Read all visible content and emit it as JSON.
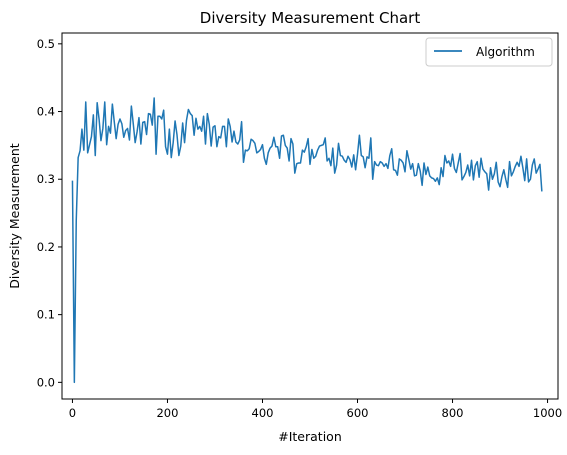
{
  "chart_data": {
    "type": "line",
    "title": "Diversity Measurement Chart",
    "xlabel": "#Iteration",
    "ylabel": "Diversity Measurement",
    "xlim": [
      -22,
      1022
    ],
    "ylim": [
      -0.0246,
      0.516
    ],
    "xticks": [
      0,
      200,
      400,
      600,
      800,
      1000
    ],
    "xtick_labels": [
      "0",
      "200",
      "400",
      "600",
      "800",
      "1000"
    ],
    "yticks": [
      0.0,
      0.1,
      0.2,
      0.3,
      0.4,
      0.5
    ],
    "ytick_labels": [
      "0.0",
      "0.1",
      "0.2",
      "0.3",
      "0.4",
      "0.5"
    ],
    "grid": false,
    "legend_position": "top-right",
    "series": [
      {
        "name": "Algorithm",
        "color": "#1f77b4",
        "approximate": true,
        "x_start": 0,
        "x_step": 4,
        "values": [
          0.298,
          0.0,
          0.239,
          0.332,
          0.342,
          0.374,
          0.343,
          0.414,
          0.339,
          0.351,
          0.363,
          0.395,
          0.335,
          0.413,
          0.389,
          0.357,
          0.375,
          0.414,
          0.351,
          0.378,
          0.368,
          0.411,
          0.385,
          0.36,
          0.381,
          0.389,
          0.382,
          0.362,
          0.372,
          0.375,
          0.358,
          0.408,
          0.382,
          0.354,
          0.37,
          0.391,
          0.352,
          0.384,
          0.385,
          0.366,
          0.397,
          0.396,
          0.38,
          0.42,
          0.337,
          0.393,
          0.393,
          0.389,
          0.402,
          0.348,
          0.337,
          0.374,
          0.332,
          0.354,
          0.386,
          0.366,
          0.335,
          0.349,
          0.383,
          0.354,
          0.387,
          0.403,
          0.397,
          0.394,
          0.365,
          0.39,
          0.374,
          0.378,
          0.371,
          0.393,
          0.352,
          0.397,
          0.381,
          0.349,
          0.377,
          0.379,
          0.348,
          0.363,
          0.361,
          0.378,
          0.378,
          0.348,
          0.389,
          0.378,
          0.355,
          0.371,
          0.355,
          0.352,
          0.358,
          0.385,
          0.325,
          0.343,
          0.342,
          0.345,
          0.359,
          0.357,
          0.353,
          0.339,
          0.341,
          0.344,
          0.351,
          0.331,
          0.322,
          0.339,
          0.346,
          0.349,
          0.362,
          0.348,
          0.348,
          0.331,
          0.364,
          0.365,
          0.35,
          0.346,
          0.327,
          0.36,
          0.352,
          0.309,
          0.323,
          0.324,
          0.324,
          0.343,
          0.34,
          0.348,
          0.36,
          0.322,
          0.344,
          0.331,
          0.334,
          0.343,
          0.349,
          0.35,
          0.351,
          0.361,
          0.327,
          0.331,
          0.32,
          0.346,
          0.309,
          0.321,
          0.353,
          0.335,
          0.334,
          0.328,
          0.325,
          0.334,
          0.329,
          0.318,
          0.336,
          0.314,
          0.337,
          0.365,
          0.335,
          0.333,
          0.317,
          0.333,
          0.331,
          0.361,
          0.3,
          0.326,
          0.321,
          0.32,
          0.326,
          0.324,
          0.319,
          0.323,
          0.316,
          0.335,
          0.345,
          0.314,
          0.313,
          0.306,
          0.33,
          0.328,
          0.324,
          0.311,
          0.342,
          0.329,
          0.315,
          0.323,
          0.305,
          0.306,
          0.323,
          0.312,
          0.291,
          0.324,
          0.307,
          0.318,
          0.305,
          0.302,
          0.301,
          0.297,
          0.302,
          0.292,
          0.317,
          0.304,
          0.335,
          0.324,
          0.327,
          0.319,
          0.337,
          0.316,
          0.31,
          0.324,
          0.338,
          0.299,
          0.304,
          0.31,
          0.321,
          0.305,
          0.328,
          0.299,
          0.32,
          0.326,
          0.303,
          0.331,
          0.315,
          0.311,
          0.308,
          0.284,
          0.317,
          0.3,
          0.308,
          0.325,
          0.296,
          0.289,
          0.304,
          0.314,
          0.3,
          0.288,
          0.326,
          0.305,
          0.311,
          0.319,
          0.325,
          0.319,
          0.334,
          0.317,
          0.298,
          0.33,
          0.296,
          0.3,
          0.321,
          0.33,
          0.309,
          0.315,
          0.322,
          0.282
        ]
      }
    ]
  }
}
